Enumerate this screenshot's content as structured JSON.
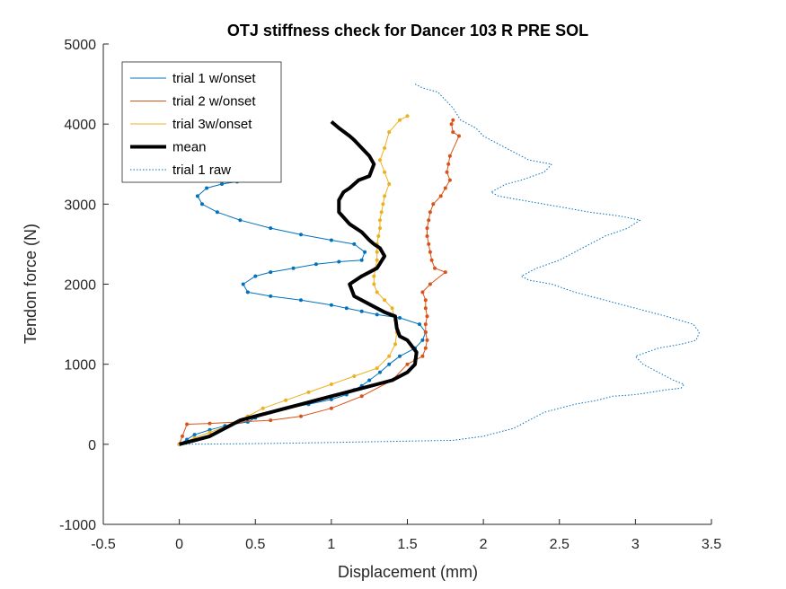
{
  "chart_data": {
    "type": "line",
    "title": "OTJ stiffness check for Dancer 103 R PRE SOL",
    "xlabel": "Displacement (mm)",
    "ylabel": "Tendon force (N)",
    "xlim": [
      -0.5,
      3.5
    ],
    "ylim": [
      -1000,
      5000
    ],
    "xticks": [
      -0.5,
      0,
      0.5,
      1,
      1.5,
      2,
      2.5,
      3,
      3.5
    ],
    "xtick_labels": [
      "-0.5",
      "0",
      "0.5",
      "1",
      "1.5",
      "2",
      "2.5",
      "3",
      "3.5"
    ],
    "yticks": [
      -1000,
      0,
      1000,
      2000,
      3000,
      4000,
      5000
    ],
    "ytick_labels": [
      "-1000",
      "0",
      "1000",
      "2000",
      "3000",
      "4000",
      "5000"
    ],
    "grid": false,
    "legend_position": "top-left",
    "series": [
      {
        "name": "trial 1 w/onset",
        "color": "#0072BD",
        "style": "solid-markers",
        "x": [
          0,
          0.05,
          0.1,
          0.2,
          0.3,
          0.45,
          0.5,
          0.6,
          0.7,
          0.85,
          1.0,
          1.1,
          1.15,
          1.2,
          1.25,
          1.32,
          1.38,
          1.45,
          1.55,
          1.6,
          1.62,
          1.58,
          1.45,
          1.3,
          1.2,
          1.1,
          1.0,
          0.8,
          0.6,
          0.45,
          0.42,
          0.5,
          0.6,
          0.75,
          0.9,
          1.05,
          1.2,
          1.22,
          1.15,
          1.0,
          0.8,
          0.6,
          0.4,
          0.25,
          0.15,
          0.12,
          0.18,
          0.28,
          0.38
        ],
        "y": [
          0,
          60,
          120,
          180,
          230,
          280,
          330,
          400,
          450,
          500,
          560,
          620,
          680,
          730,
          800,
          900,
          1000,
          1100,
          1200,
          1300,
          1400,
          1500,
          1580,
          1620,
          1660,
          1700,
          1740,
          1800,
          1850,
          1900,
          2000,
          2100,
          2150,
          2200,
          2250,
          2280,
          2300,
          2400,
          2500,
          2550,
          2620,
          2700,
          2800,
          2900,
          3000,
          3100,
          3200,
          3250,
          3280
        ]
      },
      {
        "name": "trial 2 w/onset",
        "color": "#D95319",
        "style": "solid-markers",
        "x": [
          0,
          0.02,
          0.05,
          0.2,
          0.4,
          0.6,
          0.8,
          1.0,
          1.2,
          1.4,
          1.5,
          1.55,
          1.6,
          1.62,
          1.63,
          1.62,
          1.62,
          1.63,
          1.62,
          1.62,
          1.6,
          1.65,
          1.75,
          1.68,
          1.66,
          1.65,
          1.64,
          1.63,
          1.63,
          1.64,
          1.65,
          1.67,
          1.72,
          1.75,
          1.78,
          1.76,
          1.77,
          1.78,
          1.84,
          1.8,
          1.79,
          1.8
        ],
        "y": [
          0,
          100,
          250,
          260,
          280,
          300,
          350,
          450,
          600,
          800,
          1000,
          1050,
          1100,
          1200,
          1300,
          1400,
          1500,
          1600,
          1700,
          1800,
          1900,
          2000,
          2150,
          2200,
          2300,
          2400,
          2500,
          2600,
          2700,
          2800,
          2900,
          3000,
          3100,
          3200,
          3300,
          3400,
          3500,
          3600,
          3850,
          3900,
          4000,
          4050
        ]
      },
      {
        "name": "trial 3w/onset",
        "color": "#EDB120",
        "style": "solid-markers",
        "x": [
          0,
          0.1,
          0.2,
          0.35,
          0.45,
          0.55,
          0.7,
          0.85,
          1.0,
          1.15,
          1.3,
          1.38,
          1.42,
          1.43,
          1.42,
          1.4,
          1.35,
          1.3,
          1.28,
          1.28,
          1.29,
          1.3,
          1.3,
          1.3,
          1.31,
          1.32,
          1.32,
          1.33,
          1.34,
          1.35,
          1.38,
          1.35,
          1.32,
          1.35,
          1.38,
          1.45,
          1.5
        ],
        "y": [
          0,
          80,
          150,
          250,
          350,
          450,
          550,
          650,
          750,
          850,
          950,
          1100,
          1250,
          1400,
          1550,
          1700,
          1800,
          1900,
          2000,
          2100,
          2200,
          2300,
          2400,
          2500,
          2600,
          2700,
          2800,
          2900,
          3000,
          3100,
          3250,
          3400,
          3550,
          3700,
          3900,
          4050,
          4100
        ]
      },
      {
        "name": "mean",
        "color": "#000000",
        "style": "thick",
        "x": [
          0,
          0.1,
          0.2,
          0.3,
          0.4,
          0.5,
          0.6,
          0.7,
          0.8,
          0.9,
          1.0,
          1.1,
          1.2,
          1.3,
          1.4,
          1.5,
          1.55,
          1.56,
          1.5,
          1.45,
          1.43,
          1.42,
          1.35,
          1.3,
          1.25,
          1.15,
          1.12,
          1.2,
          1.3,
          1.35,
          1.32,
          1.28,
          1.25,
          1.2,
          1.12,
          1.05,
          1.05,
          1.08,
          1.12,
          1.18,
          1.25,
          1.28,
          1.25,
          1.2,
          1.15,
          1.12,
          1.05,
          1.0
        ],
        "y": [
          0,
          50,
          100,
          200,
          300,
          350,
          400,
          450,
          500,
          550,
          600,
          650,
          700,
          750,
          800,
          900,
          1000,
          1150,
          1300,
          1350,
          1450,
          1600,
          1650,
          1700,
          1750,
          1850,
          2000,
          2100,
          2200,
          2350,
          2450,
          2500,
          2550,
          2650,
          2750,
          2900,
          3050,
          3150,
          3200,
          3300,
          3350,
          3500,
          3600,
          3700,
          3800,
          3850,
          3950,
          4030
        ]
      },
      {
        "name": "trial 1 raw",
        "color": "#0072BD",
        "style": "dotted",
        "x": [
          0,
          0.3,
          0.6,
          0.9,
          1.2,
          1.5,
          1.8,
          2.0,
          2.2,
          2.3,
          2.4,
          2.6,
          2.75,
          2.85,
          3.0,
          3.1,
          3.2,
          3.3,
          3.32,
          3.25,
          3.15,
          3.05,
          3.0,
          3.15,
          3.3,
          3.4,
          3.42,
          3.38,
          3.2,
          3.0,
          2.8,
          2.6,
          2.45,
          2.3,
          2.25,
          2.35,
          2.5,
          2.6,
          2.7,
          2.8,
          2.95,
          3.03,
          2.9,
          2.7,
          2.55,
          2.4,
          2.25,
          2.1,
          2.05,
          2.15,
          2.25,
          2.4,
          2.45,
          2.3,
          2.2,
          2.1,
          2.0,
          1.95,
          1.85,
          1.8,
          1.75,
          1.7,
          1.6,
          1.55
        ],
        "y": [
          0,
          5,
          10,
          20,
          30,
          40,
          50,
          100,
          200,
          300,
          400,
          500,
          550,
          600,
          620,
          650,
          680,
          700,
          750,
          800,
          900,
          1000,
          1100,
          1200,
          1250,
          1300,
          1400,
          1500,
          1600,
          1700,
          1800,
          1900,
          2000,
          2050,
          2100,
          2200,
          2300,
          2400,
          2500,
          2600,
          2700,
          2800,
          2850,
          2900,
          2950,
          3000,
          3050,
          3100,
          3150,
          3250,
          3300,
          3400,
          3500,
          3550,
          3650,
          3750,
          3850,
          3950,
          4050,
          4200,
          4300,
          4400,
          4450,
          4500
        ]
      }
    ]
  }
}
